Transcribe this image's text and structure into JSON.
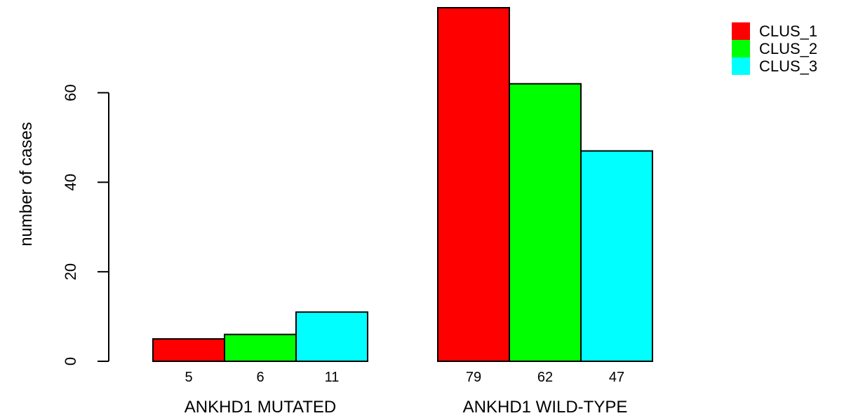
{
  "chart_data": {
    "type": "bar",
    "categories": [
      "ANKHD1 MUTATED",
      "ANKHD1 WILD-TYPE"
    ],
    "series": [
      {
        "name": "CLUS_1",
        "color": "#ff0000",
        "values": [
          5,
          79
        ]
      },
      {
        "name": "CLUS_2",
        "color": "#00ff00",
        "values": [
          6,
          62
        ]
      },
      {
        "name": "CLUS_3",
        "color": "#00ffff",
        "values": [
          11,
          47
        ]
      }
    ],
    "value_labels": [
      [
        "5",
        "6",
        "11"
      ],
      [
        "79",
        "62",
        "47"
      ]
    ],
    "title": "",
    "xlabel": "",
    "ylabel": "number of cases",
    "y_ticks": [
      0,
      20,
      40,
      60
    ],
    "ylim": [
      0,
      79
    ],
    "grid": false,
    "legend_position": "top-right"
  }
}
